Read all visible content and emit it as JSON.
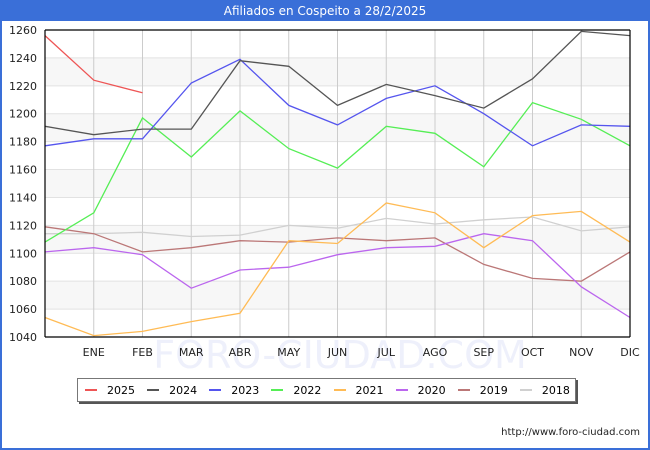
{
  "title": "Afiliados en Cospeito a 28/2/2025",
  "url": "http://www.foro-ciudad.com",
  "watermark": "FORO-CIUDAD.COM",
  "chart_data": {
    "type": "line",
    "title": "Afiliados en Cospeito a 28/2/2025",
    "xlabel": "",
    "ylabel": "",
    "categories": [
      "",
      "ENE",
      "FEB",
      "MAR",
      "ABR",
      "MAY",
      "JUN",
      "JUL",
      "AGO",
      "SEP",
      "OCT",
      "NOV",
      "DIC"
    ],
    "yticks": [
      1040,
      1060,
      1080,
      1100,
      1120,
      1140,
      1160,
      1180,
      1200,
      1220,
      1240,
      1260
    ],
    "ylim": [
      1040,
      1260
    ],
    "grid": true,
    "legend_position": "bottom",
    "series": [
      {
        "name": "2025",
        "color": "#ee5555",
        "values": [
          1256,
          1224,
          1215
        ]
      },
      {
        "name": "2024",
        "color": "#555555",
        "values": [
          1191,
          1185,
          1189,
          1189,
          1238,
          1234,
          1206,
          1221,
          1213,
          1204,
          1225,
          1259,
          1256
        ]
      },
      {
        "name": "2023",
        "color": "#5555ee",
        "values": [
          1177,
          1182,
          1182,
          1222,
          1239,
          1206,
          1192,
          1211,
          1220,
          1200,
          1177,
          1192,
          1191
        ]
      },
      {
        "name": "2022",
        "color": "#55ee55",
        "values": [
          1108,
          1129,
          1197,
          1169,
          1202,
          1175,
          1161,
          1191,
          1186,
          1162,
          1208,
          1196,
          1177
        ]
      },
      {
        "name": "2021",
        "color": "#ffbb55",
        "values": [
          1054,
          1041,
          1044,
          1051,
          1057,
          1109,
          1107,
          1136,
          1129,
          1104,
          1127,
          1130,
          1108
        ]
      },
      {
        "name": "2020",
        "color": "#bb66ee",
        "values": [
          1101,
          1104,
          1099,
          1075,
          1088,
          1090,
          1099,
          1104,
          1105,
          1114,
          1109,
          1076,
          1054
        ]
      },
      {
        "name": "2019",
        "color": "#bb7777",
        "values": [
          1119,
          1114,
          1101,
          1104,
          1109,
          1108,
          1111,
          1109,
          1111,
          1092,
          1082,
          1080,
          1101
        ]
      },
      {
        "name": "2018",
        "color": "#d0d0d0",
        "values": [
          1114,
          1114,
          1115,
          1112,
          1113,
          1120,
          1118,
          1125,
          1121,
          1124,
          1126,
          1116,
          1119
        ]
      }
    ]
  }
}
